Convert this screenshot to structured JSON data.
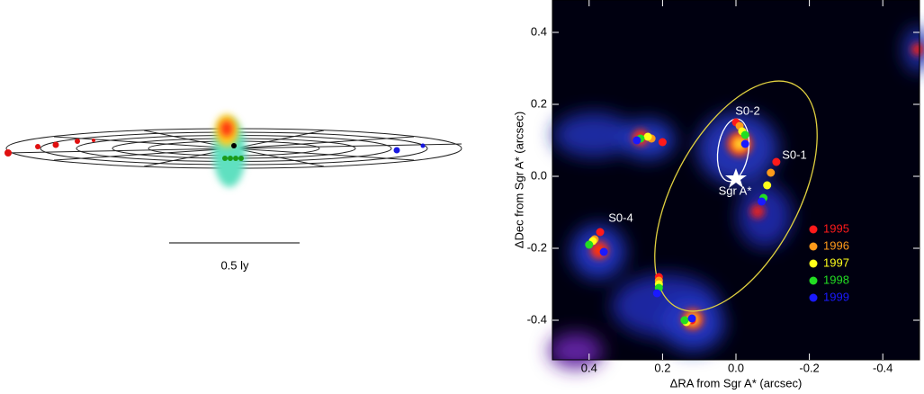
{
  "diagram": {
    "scale_label": "0.5 ly"
  },
  "chart_data": {
    "type": "scatter",
    "xlabel": "ΔRA from Sgr A* (arcsec)",
    "ylabel": "ΔDec from Sgr A* (arcsec)",
    "xlim": [
      0.5,
      -0.5
    ],
    "ylim": [
      -0.51,
      0.49
    ],
    "xticks": [
      0.4,
      0.2,
      {
        "value": 0,
        "label": "0.0"
      },
      -0.2,
      -0.4
    ],
    "yticks": [
      -0.4,
      -0.2,
      {
        "value": 0,
        "label": "0.0"
      },
      0.2,
      0.4
    ],
    "annotations": [
      "S0-2",
      "S0-1",
      "S0-4",
      "Sgr A*"
    ],
    "series": [
      {
        "name": "1995",
        "color": "#ff1a1a",
        "x": [
          0.0,
          -0.11,
          0.37,
          0.2,
          0.21,
          0.12
        ],
        "y": [
          0.15,
          0.04,
          -0.155,
          0.095,
          -0.28,
          -0.4
        ]
      },
      {
        "name": "1996",
        "color": "#ff9a1a",
        "x": [
          -0.01,
          -0.095,
          0.385,
          0.23,
          0.21,
          0.13
        ],
        "y": [
          0.14,
          0.01,
          -0.175,
          0.105,
          -0.29,
          -0.4
        ]
      },
      {
        "name": "1997",
        "color": "#ffff1a",
        "x": [
          -0.017,
          -0.085,
          0.39,
          0.24,
          0.21,
          0.135
        ],
        "y": [
          0.125,
          -0.025,
          -0.18,
          0.11,
          -0.3,
          -0.405
        ]
      },
      {
        "name": "1998",
        "color": "#22dd22",
        "x": [
          -0.025,
          -0.075,
          0.4,
          0.26,
          0.21,
          0.14
        ],
        "y": [
          0.115,
          -0.06,
          -0.19,
          0.105,
          -0.31,
          -0.4
        ]
      },
      {
        "name": "1999",
        "color": "#1a1aff",
        "x": [
          -0.025,
          -0.07,
          0.36,
          0.27,
          0.215,
          0.12
        ],
        "y": [
          0.09,
          -0.07,
          -0.21,
          0.1,
          -0.325,
          -0.395
        ]
      }
    ]
  }
}
